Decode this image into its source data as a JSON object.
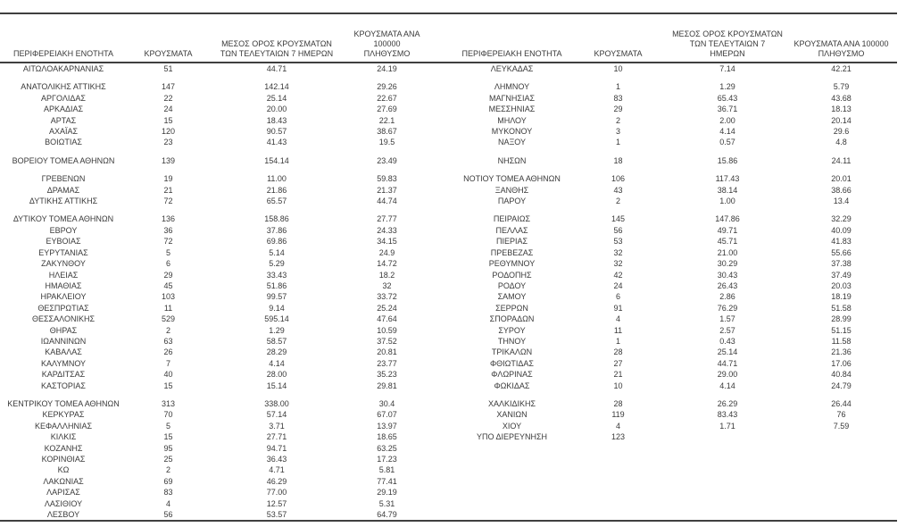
{
  "colors": {
    "background": "#ffffff",
    "text": "#3a3a3a",
    "rule": "#3f3f3f"
  },
  "table": {
    "columns": [
      "ΠΕΡΙΦΕΡΕΙΑΚΗ ΕΝΟΤΗΤΑ",
      "ΚΡΟΥΣΜΑΤΑ",
      "ΜΕΣΟΣ ΟΡΟΣ ΚΡΟΥΣΜΑΤΩΝ\nΤΩΝ ΤΕΛΕΥΤΑΙΩΝ 7 ΗΜΕΡΩΝ",
      "ΚΡΟΥΣΜΑΤΑ ΑΝΑ 100000\nΠΛΗΘΥΣΜΟ"
    ],
    "rows": [
      [
        "ΑΙΤΩΛΟΑΚΑΡΝΑΝΙΑΣ",
        "51",
        "44.71",
        "24.19",
        "ΛΕΥΚΑΔΑΣ",
        "10",
        "7.14",
        "42.21"
      ],
      "spacer",
      [
        "ΑΝΑΤΟΛΙΚΗΣ ΑΤΤΙΚΗΣ",
        "147",
        "142.14",
        "29.26",
        "ΛΗΜΝΟΥ",
        "1",
        "1.29",
        "5.79"
      ],
      [
        "ΑΡΓΟΛΙΔΑΣ",
        "22",
        "25.14",
        "22.67",
        "ΜΑΓΝΗΣΙΑΣ",
        "83",
        "65.43",
        "43.68"
      ],
      [
        "ΑΡΚΑΔΙΑΣ",
        "24",
        "20.00",
        "27.69",
        "ΜΕΣΣΗΝΙΑΣ",
        "29",
        "36.71",
        "18.13"
      ],
      [
        "ΑΡΤΑΣ",
        "15",
        "18.43",
        "22.1",
        "ΜΗΛΟΥ",
        "2",
        "2.00",
        "20.14"
      ],
      [
        "ΑΧΑΪΑΣ",
        "120",
        "90.57",
        "38.67",
        "ΜΥΚΟΝΟΥ",
        "3",
        "4.14",
        "29.6"
      ],
      [
        "ΒΟΙΩΤΙΑΣ",
        "23",
        "41.43",
        "19.5",
        "ΝΑΞΟΥ",
        "1",
        "0.57",
        "4.8"
      ],
      "spacer",
      [
        "ΒΟΡΕΙΟΥ ΤΟΜΕΑ ΑΘΗΝΩΝ",
        "139",
        "154.14",
        "23.49",
        "ΝΗΣΩΝ",
        "18",
        "15.86",
        "24.11"
      ],
      "spacer",
      [
        "ΓΡΕΒΕΝΩΝ",
        "19",
        "11.00",
        "59.83",
        "ΝΟΤΙΟΥ ΤΟΜΕΑ ΑΘΗΝΩΝ",
        "106",
        "117.43",
        "20.01"
      ],
      [
        "ΔΡΑΜΑΣ",
        "21",
        "21.86",
        "21.37",
        "ΞΑΝΘΗΣ",
        "43",
        "38.14",
        "38.66"
      ],
      [
        "ΔΥΤΙΚΗΣ ΑΤΤΙΚΗΣ",
        "72",
        "65.57",
        "44.74",
        "ΠΑΡΟΥ",
        "2",
        "1.00",
        "13.4"
      ],
      "spacer",
      [
        "ΔΥΤΙΚΟΥ ΤΟΜΕΑ ΑΘΗΝΩΝ",
        "136",
        "158.86",
        "27.77",
        "ΠΕΙΡΑΙΩΣ",
        "145",
        "147.86",
        "32.29"
      ],
      [
        "ΕΒΡΟΥ",
        "36",
        "37.86",
        "24.33",
        "ΠΕΛΛΑΣ",
        "56",
        "49.71",
        "40.09"
      ],
      [
        "ΕΥΒΟΙΑΣ",
        "72",
        "69.86",
        "34.15",
        "ΠΙΕΡΙΑΣ",
        "53",
        "45.71",
        "41.83"
      ],
      [
        "ΕΥΡΥΤΑΝΙΑΣ",
        "5",
        "5.14",
        "24.9",
        "ΠΡΕΒΕΖΑΣ",
        "32",
        "21.00",
        "55.66"
      ],
      [
        "ΖΑΚΥΝΘΟΥ",
        "6",
        "5.29",
        "14.72",
        "ΡΕΘΥΜΝΟΥ",
        "32",
        "30.29",
        "37.38"
      ],
      [
        "ΗΛΕΙΑΣ",
        "29",
        "33.43",
        "18.2",
        "ΡΟΔΟΠΗΣ",
        "42",
        "30.43",
        "37.49"
      ],
      [
        "ΗΜΑΘΙΑΣ",
        "45",
        "51.86",
        "32",
        "ΡΟΔΟΥ",
        "24",
        "26.43",
        "20.03"
      ],
      [
        "ΗΡΑΚΛΕΙΟΥ",
        "103",
        "99.57",
        "33.72",
        "ΣΑΜΟΥ",
        "6",
        "2.86",
        "18.19"
      ],
      [
        "ΘΕΣΠΡΩΤΙΑΣ",
        "11",
        "9.14",
        "25.24",
        "ΣΕΡΡΩΝ",
        "91",
        "76.29",
        "51.58"
      ],
      [
        "ΘΕΣΣΑΛΟΝΙΚΗΣ",
        "529",
        "595.14",
        "47.64",
        "ΣΠΟΡΑΔΩΝ",
        "4",
        "1.57",
        "28.99"
      ],
      [
        "ΘΗΡΑΣ",
        "2",
        "1.29",
        "10.59",
        "ΣΥΡΟΥ",
        "11",
        "2.57",
        "51.15"
      ],
      [
        "ΙΩΑΝΝΙΝΩΝ",
        "63",
        "58.57",
        "37.52",
        "ΤΗΝΟΥ",
        "1",
        "0.43",
        "11.58"
      ],
      [
        "ΚΑΒΑΛΑΣ",
        "26",
        "28.29",
        "20.81",
        "ΤΡΙΚΑΛΩΝ",
        "28",
        "25.14",
        "21.36"
      ],
      [
        "ΚΑΛΥΜΝΟΥ",
        "7",
        "4.14",
        "23.77",
        "ΦΘΙΩΤΙΔΑΣ",
        "27",
        "44.71",
        "17.06"
      ],
      [
        "ΚΑΡΔΙΤΣΑΣ",
        "40",
        "28.00",
        "35.23",
        "ΦΛΩΡΙΝΑΣ",
        "21",
        "29.00",
        "40.84"
      ],
      [
        "ΚΑΣΤΟΡΙΑΣ",
        "15",
        "15.14",
        "29.81",
        "ΦΩΚΙΔΑΣ",
        "10",
        "4.14",
        "24.79"
      ],
      "spacer",
      [
        "ΚΕΝΤΡΙΚΟΥ ΤΟΜΕΑ ΑΘΗΝΩΝ",
        "313",
        "338.00",
        "30.4",
        "ΧΑΛΚΙΔΙΚΗΣ",
        "28",
        "26.29",
        "26.44"
      ],
      [
        "ΚΕΡΚΥΡΑΣ",
        "70",
        "57.14",
        "67.07",
        "ΧΑΝΙΩΝ",
        "119",
        "83.43",
        "76"
      ],
      [
        "ΚΕΦΑΛΛΗΝΙΑΣ",
        "5",
        "3.71",
        "13.97",
        "ΧΙΟΥ",
        "4",
        "1.71",
        "7.59"
      ],
      [
        "ΚΙΛΚΙΣ",
        "15",
        "27.71",
        "18.65",
        "ΥΠΟ ΔΙΕΡΕΥΝΗΣΗ",
        "123",
        "",
        ""
      ],
      [
        "ΚΟΖΑΝΗΣ",
        "95",
        "94.71",
        "63.25",
        "",
        "",
        "",
        ""
      ],
      [
        "ΚΟΡΙΝΘΙΑΣ",
        "25",
        "36.43",
        "17.23",
        "",
        "",
        "",
        ""
      ],
      [
        "ΚΩ",
        "2",
        "4.71",
        "5.81",
        "",
        "",
        "",
        ""
      ],
      [
        "ΛΑΚΩΝΙΑΣ",
        "69",
        "46.29",
        "77.41",
        "",
        "",
        "",
        ""
      ],
      [
        "ΛΑΡΙΣΑΣ",
        "83",
        "77.00",
        "29.19",
        "",
        "",
        "",
        ""
      ],
      [
        "ΛΑΣΙΘΙΟΥ",
        "4",
        "12.57",
        "5.31",
        "",
        "",
        "",
        ""
      ],
      [
        "ΛΕΣΒΟΥ",
        "56",
        "53.57",
        "64.79",
        "",
        "",
        "",
        ""
      ]
    ]
  }
}
